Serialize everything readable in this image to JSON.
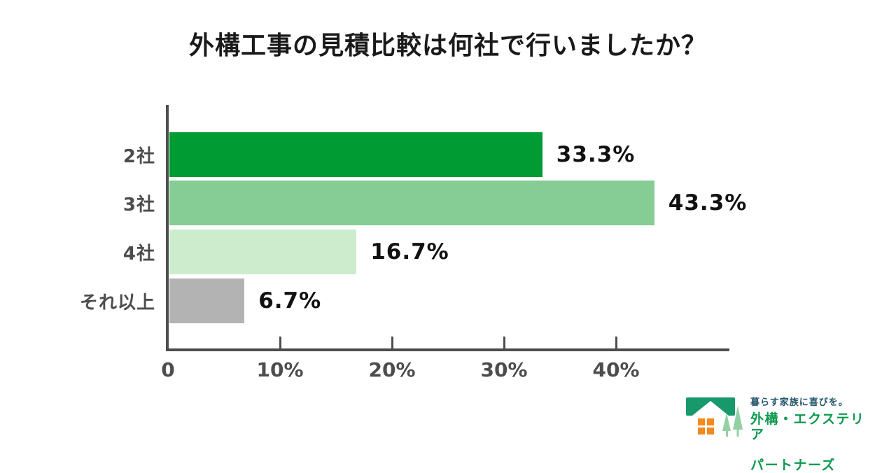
{
  "title": "外構工事の見積比較は何社で行いましたか？",
  "chart_data": {
    "type": "bar",
    "orientation": "horizontal",
    "title": "外構工事の見積比較は何社で行いましたか？",
    "categories": [
      "2社",
      "3社",
      "4社",
      "それ以上"
    ],
    "values": [
      33.3,
      43.3,
      16.7,
      6.7
    ],
    "value_labels": [
      "33.3%",
      "43.3%",
      "16.7%",
      "6.7%"
    ],
    "bar_colors": [
      "#009b33",
      "#85cc95",
      "#cdeccd",
      "#b3b3b3"
    ],
    "xlim": [
      0,
      50
    ],
    "x_ticks": [
      {
        "value": 0,
        "label": "0"
      },
      {
        "value": 10,
        "label": "10%"
      },
      {
        "value": 20,
        "label": "20%"
      },
      {
        "value": 30,
        "label": "30%"
      },
      {
        "value": 40,
        "label": "40%"
      }
    ],
    "grid": false,
    "legend": false,
    "axis_color": "#4d4d4d",
    "category_label_color": "#4d4d4d",
    "value_label_color": "#111111"
  },
  "logo": {
    "tagline": "暮らす家族に喜びを。",
    "name_line1": "外構・エクステリア",
    "name_line2": "パートナーズ",
    "colors": {
      "roof": "#17996b",
      "tree": "#93d0a4",
      "window": "#f28a1d",
      "name_text": "#0d9a4e",
      "tagline_text": "#23566b"
    }
  }
}
